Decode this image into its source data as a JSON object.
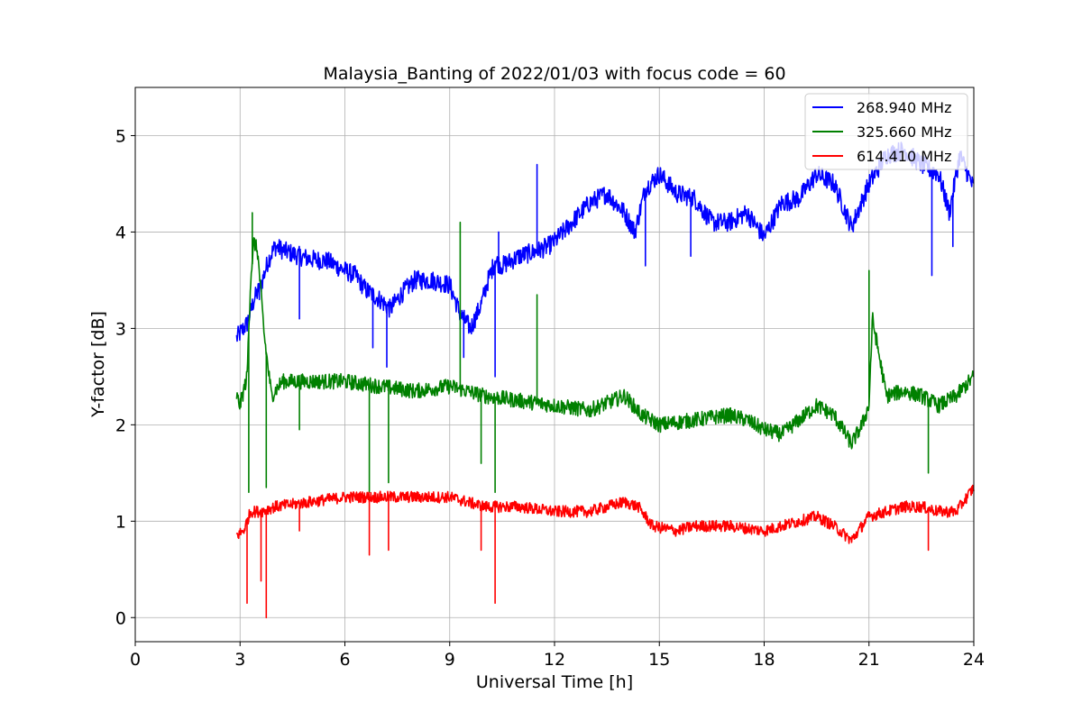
{
  "chart_data": {
    "type": "line",
    "title": "Malaysia_Banting of 2022/01/03 with focus code = 60",
    "xlabel": "Universal Time [h]",
    "ylabel": "Y-factor [dB]",
    "xlim": [
      0,
      24
    ],
    "ylim": [
      -0.25,
      5.5
    ],
    "xticks": [
      0,
      3,
      6,
      9,
      12,
      15,
      18,
      21,
      24
    ],
    "yticks": [
      0,
      1,
      2,
      3,
      4,
      5
    ],
    "grid": true,
    "legend": "top-right",
    "series": [
      {
        "name": "268.940 MHz",
        "color": "#0000ff",
        "noise": 0.1,
        "x": [
          2.9,
          3.0,
          3.2,
          3.4,
          3.6,
          3.8,
          4.0,
          4.3,
          4.7,
          5.0,
          5.5,
          6.0,
          6.3,
          6.6,
          7.0,
          7.3,
          7.6,
          8.0,
          8.5,
          9.0,
          9.3,
          9.6,
          9.9,
          10.1,
          10.3,
          10.5,
          11.0,
          11.5,
          11.8,
          12.0,
          12.5,
          13.0,
          13.5,
          14.0,
          14.3,
          14.6,
          15.0,
          15.5,
          16.0,
          16.5,
          17.0,
          17.5,
          18.0,
          18.5,
          19.0,
          19.5,
          20.0,
          20.5,
          21.0,
          21.5,
          22.0,
          22.5,
          23.0,
          23.3,
          23.6,
          24.0
        ],
        "y": [
          2.9,
          2.95,
          3.05,
          3.3,
          3.45,
          3.7,
          3.85,
          3.8,
          3.75,
          3.72,
          3.7,
          3.6,
          3.55,
          3.4,
          3.3,
          3.2,
          3.35,
          3.5,
          3.5,
          3.45,
          3.15,
          3.0,
          3.25,
          3.5,
          3.7,
          3.65,
          3.75,
          3.8,
          3.85,
          3.9,
          4.1,
          4.3,
          4.4,
          4.2,
          4.0,
          4.45,
          4.6,
          4.4,
          4.35,
          4.1,
          4.1,
          4.2,
          3.95,
          4.3,
          4.35,
          4.6,
          4.5,
          4.05,
          4.5,
          4.8,
          4.85,
          4.7,
          4.6,
          4.2,
          4.8,
          4.45
        ],
        "spikes": [
          {
            "x": 3.55,
            "y": 3.3
          },
          {
            "x": 4.7,
            "y": 3.1
          },
          {
            "x": 6.8,
            "y": 2.8
          },
          {
            "x": 7.2,
            "y": 2.6
          },
          {
            "x": 9.4,
            "y": 2.7
          },
          {
            "x": 10.3,
            "y": 2.5
          },
          {
            "x": 10.4,
            "y": 4.0
          },
          {
            "x": 11.5,
            "y": 4.7
          },
          {
            "x": 14.6,
            "y": 3.65
          },
          {
            "x": 15.9,
            "y": 3.75
          },
          {
            "x": 22.8,
            "y": 3.55
          },
          {
            "x": 23.4,
            "y": 3.85
          }
        ]
      },
      {
        "name": "325.660 MHz",
        "color": "#008000",
        "noise": 0.08,
        "x": [
          2.9,
          3.0,
          3.2,
          3.3,
          3.4,
          3.5,
          3.7,
          3.9,
          4.2,
          5.0,
          6.0,
          7.0,
          8.0,
          9.0,
          10.0,
          11.0,
          12.0,
          13.0,
          14.0,
          14.5,
          15.0,
          16.0,
          17.0,
          17.5,
          18.0,
          18.5,
          19.0,
          19.5,
          20.0,
          20.5,
          20.8,
          21.0,
          21.1,
          21.5,
          22.0,
          22.5,
          23.0,
          23.5,
          24.0
        ],
        "y": [
          2.3,
          2.2,
          2.5,
          3.5,
          3.9,
          3.8,
          2.9,
          2.3,
          2.45,
          2.45,
          2.45,
          2.4,
          2.35,
          2.4,
          2.3,
          2.25,
          2.2,
          2.15,
          2.3,
          2.1,
          2.0,
          2.05,
          2.1,
          2.05,
          1.95,
          1.9,
          2.05,
          2.2,
          2.1,
          1.8,
          2.0,
          2.2,
          3.1,
          2.3,
          2.35,
          2.3,
          2.2,
          2.3,
          2.5
        ],
        "spikes": [
          {
            "x": 3.25,
            "y": 1.3
          },
          {
            "x": 3.35,
            "y": 4.2
          },
          {
            "x": 3.75,
            "y": 1.35
          },
          {
            "x": 4.7,
            "y": 1.95
          },
          {
            "x": 6.7,
            "y": 1.3
          },
          {
            "x": 7.25,
            "y": 1.4
          },
          {
            "x": 9.3,
            "y": 4.1
          },
          {
            "x": 9.9,
            "y": 1.6
          },
          {
            "x": 10.3,
            "y": 1.3
          },
          {
            "x": 11.5,
            "y": 3.35
          },
          {
            "x": 21.0,
            "y": 3.6
          },
          {
            "x": 22.7,
            "y": 1.5
          }
        ]
      },
      {
        "name": "614.410 MHz",
        "color": "#ff0000",
        "noise": 0.06,
        "x": [
          2.9,
          3.1,
          3.3,
          3.6,
          4.0,
          5.0,
          6.0,
          7.0,
          8.0,
          9.0,
          9.5,
          10.0,
          11.0,
          12.0,
          13.0,
          14.0,
          14.4,
          14.8,
          15.5,
          16.0,
          17.0,
          18.0,
          18.5,
          19.0,
          19.5,
          20.0,
          20.5,
          21.0,
          21.5,
          22.0,
          22.5,
          23.0,
          23.5,
          24.0
        ],
        "y": [
          0.85,
          0.9,
          1.1,
          1.1,
          1.15,
          1.2,
          1.25,
          1.25,
          1.25,
          1.25,
          1.2,
          1.15,
          1.15,
          1.1,
          1.1,
          1.2,
          1.15,
          0.95,
          0.9,
          0.95,
          0.95,
          0.9,
          0.95,
          1.0,
          1.05,
          0.95,
          0.8,
          1.05,
          1.1,
          1.15,
          1.15,
          1.1,
          1.1,
          1.35
        ],
        "spikes": [
          {
            "x": 3.2,
            "y": 0.15
          },
          {
            "x": 3.6,
            "y": 0.38
          },
          {
            "x": 3.75,
            "y": 0.0
          },
          {
            "x": 4.7,
            "y": 0.9
          },
          {
            "x": 6.7,
            "y": 0.65
          },
          {
            "x": 7.25,
            "y": 0.7
          },
          {
            "x": 9.9,
            "y": 0.7
          },
          {
            "x": 10.3,
            "y": 0.15
          },
          {
            "x": 22.7,
            "y": 0.7
          }
        ]
      }
    ]
  }
}
